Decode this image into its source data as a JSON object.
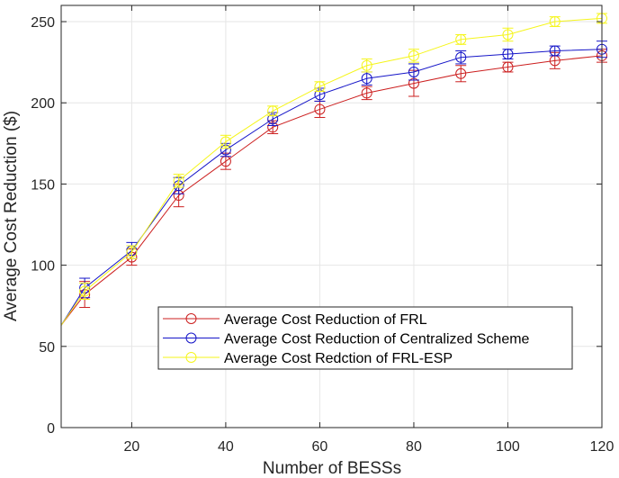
{
  "chart_data": {
    "type": "line",
    "xlabel": "Number of BESSs",
    "ylabel": "Average Cost Reduction ($)",
    "xlim": [
      5,
      120
    ],
    "ylim": [
      0,
      260
    ],
    "xticks": [
      20,
      40,
      60,
      80,
      100,
      120
    ],
    "yticks": [
      0,
      50,
      100,
      150,
      200,
      250
    ],
    "grid": true,
    "legend_position": "lower-center",
    "x": [
      10,
      20,
      30,
      40,
      50,
      60,
      70,
      80,
      90,
      100,
      110,
      120
    ],
    "series": [
      {
        "name": "Average Cost Reduction of FRL",
        "color": "#cc1f1f",
        "start": 63,
        "values": [
          82,
          105,
          143,
          164,
          185,
          196,
          206,
          212,
          218,
          222,
          226,
          229
        ],
        "errors": [
          8,
          5,
          7,
          5,
          4,
          5,
          4,
          8,
          5,
          3,
          5,
          4
        ]
      },
      {
        "name": "Average Cost Reduction of Centralized Scheme",
        "color": "#1616c8",
        "start": 63,
        "values": [
          86,
          109,
          149,
          171,
          190,
          205,
          215,
          219,
          228,
          230,
          232,
          233
        ],
        "errors": [
          6,
          5,
          5,
          4,
          4,
          4,
          4,
          5,
          4,
          3,
          3,
          5
        ]
      },
      {
        "name": "Average Cost Redction of FRL-ESP",
        "color": "#f5f51a",
        "start": 63,
        "values": [
          84,
          108,
          152,
          176,
          195,
          210,
          223,
          229,
          239,
          242,
          250,
          252
        ],
        "errors": [
          5,
          4,
          4,
          4,
          3,
          3,
          4,
          4,
          3,
          4,
          3,
          3
        ]
      }
    ]
  }
}
